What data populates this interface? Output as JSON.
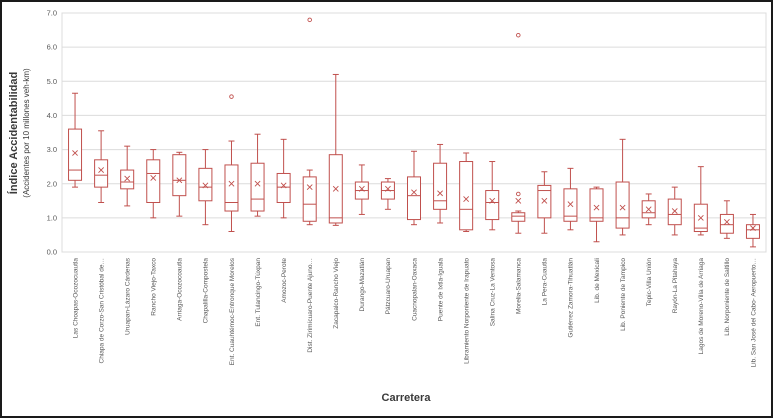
{
  "chart_data": {
    "type": "boxplot",
    "xlabel": "Carretera",
    "ylabel": "Índice Accidentabilidad",
    "ylabel_sub": "(Accidentes por 10 millones veh-km)",
    "ylim": [
      0.0,
      7.0
    ],
    "ytick_step": 1.0,
    "yticks": [
      "0.0",
      "1.0",
      "2.0",
      "3.0",
      "4.0",
      "5.0",
      "6.0",
      "7.0"
    ],
    "grid": true,
    "legend": "none",
    "colors": {
      "box_stroke": "#C0504D",
      "box_fill": "#FFFFFF",
      "gridline": "#DCDCDC",
      "plot_border": "#DCDCDC",
      "tick_text": "#595959",
      "category_text": "#595959",
      "axis_title_text": "#3A3A3A",
      "frame_border": "#1A1A1A"
    },
    "boxes": [
      {
        "label": "Las Choapas-Ocozocuautla",
        "min": 1.9,
        "q1": 2.1,
        "median": 2.4,
        "q3": 3.6,
        "max": 4.65,
        "mean": 2.9,
        "outliers": []
      },
      {
        "label": "Chiapa de Corzo-San Cristóbal de…",
        "min": 1.45,
        "q1": 1.9,
        "median": 2.25,
        "q3": 2.7,
        "max": 3.55,
        "mean": 2.4,
        "outliers": []
      },
      {
        "label": "Uruapan-Lázaro Cárdenas",
        "min": 1.35,
        "q1": 1.85,
        "median": 2.05,
        "q3": 2.4,
        "max": 3.1,
        "mean": 2.15,
        "outliers": []
      },
      {
        "label": "Rancho Viejo-Taxco",
        "min": 1.0,
        "q1": 1.45,
        "median": 2.3,
        "q3": 2.7,
        "max": 3.0,
        "mean": 2.17,
        "outliers": []
      },
      {
        "label": "Arriaga-Ocozocoautla",
        "min": 1.05,
        "q1": 1.65,
        "median": 2.1,
        "q3": 2.85,
        "max": 2.92,
        "mean": 2.1,
        "outliers": []
      },
      {
        "label": "Chapalilla-Compostela",
        "min": 0.8,
        "q1": 1.5,
        "median": 1.9,
        "q3": 2.45,
        "max": 3.0,
        "mean": 1.95,
        "outliers": []
      },
      {
        "label": "Ent. Cuauhtémoc-Entronque Morelos",
        "min": 0.6,
        "q1": 1.2,
        "median": 1.45,
        "q3": 2.55,
        "max": 3.25,
        "mean": 2.0,
        "outliers": [
          4.55
        ]
      },
      {
        "label": "Ent. Tulancingo-Túxpan",
        "min": 1.05,
        "q1": 1.2,
        "median": 1.55,
        "q3": 2.6,
        "max": 3.45,
        "mean": 2.0,
        "outliers": []
      },
      {
        "label": "Amozoc-Perote",
        "min": 1.0,
        "q1": 1.45,
        "median": 1.9,
        "q3": 2.3,
        "max": 3.3,
        "mean": 1.95,
        "outliers": []
      },
      {
        "label": "Dist. Zirimícuaro-Puente Ajuno…",
        "min": 0.8,
        "q1": 0.9,
        "median": 1.4,
        "q3": 2.2,
        "max": 2.4,
        "mean": 1.9,
        "outliers": [
          6.8
        ]
      },
      {
        "label": "Zacapalco-Rancho Viejo",
        "min": 0.78,
        "q1": 0.85,
        "median": 1.0,
        "q3": 2.85,
        "max": 5.2,
        "mean": 1.85,
        "outliers": []
      },
      {
        "label": "Durango-Mazatlán",
        "min": 1.1,
        "q1": 1.55,
        "median": 1.8,
        "q3": 2.05,
        "max": 2.55,
        "mean": 1.85,
        "outliers": []
      },
      {
        "label": "Pátzcuaro-Uruapan",
        "min": 1.25,
        "q1": 1.55,
        "median": 1.8,
        "q3": 2.05,
        "max": 2.15,
        "mean": 1.85,
        "outliers": []
      },
      {
        "label": "Cuacnopalan-Oaxaca",
        "min": 0.8,
        "q1": 0.95,
        "median": 1.65,
        "q3": 2.2,
        "max": 2.95,
        "mean": 1.75,
        "outliers": []
      },
      {
        "label": "Puente de Ixtla-Iguala",
        "min": 0.85,
        "q1": 1.25,
        "median": 1.5,
        "q3": 2.6,
        "max": 3.15,
        "mean": 1.72,
        "outliers": []
      },
      {
        "label": "Libramiento Norponiente de Irapuato",
        "min": 0.6,
        "q1": 0.65,
        "median": 1.25,
        "q3": 2.65,
        "max": 2.9,
        "mean": 1.55,
        "outliers": []
      },
      {
        "label": "Salina Cruz-La Ventosa",
        "min": 0.65,
        "q1": 0.95,
        "median": 1.45,
        "q3": 1.8,
        "max": 2.65,
        "mean": 1.5,
        "outliers": []
      },
      {
        "label": "Morelia-Salamanca",
        "min": 0.55,
        "q1": 0.9,
        "median": 1.05,
        "q3": 1.15,
        "max": 1.2,
        "mean": 1.5,
        "outliers": [
          1.7,
          6.35
        ]
      },
      {
        "label": "La Pera-Cuautla",
        "min": 0.55,
        "q1": 1.0,
        "median": 1.8,
        "q3": 1.95,
        "max": 2.35,
        "mean": 1.5,
        "outliers": []
      },
      {
        "label": "Gutiérrez Zamora-Tihuatlán",
        "min": 0.65,
        "q1": 0.9,
        "median": 1.05,
        "q3": 1.85,
        "max": 2.45,
        "mean": 1.4,
        "outliers": []
      },
      {
        "label": "Lib. de Mexicali",
        "min": 0.3,
        "q1": 0.9,
        "median": 1.0,
        "q3": 1.85,
        "max": 1.9,
        "mean": 1.3,
        "outliers": []
      },
      {
        "label": "Lib. Poniente de Tampico",
        "min": 0.5,
        "q1": 0.7,
        "median": 1.0,
        "q3": 2.05,
        "max": 3.3,
        "mean": 1.3,
        "outliers": []
      },
      {
        "label": "Tepic-Villa Unión",
        "min": 0.8,
        "q1": 1.0,
        "median": 1.15,
        "q3": 1.5,
        "max": 1.7,
        "mean": 1.25,
        "outliers": []
      },
      {
        "label": "Rayón-La Pitahaya",
        "min": 0.5,
        "q1": 0.8,
        "median": 1.1,
        "q3": 1.55,
        "max": 1.9,
        "mean": 1.2,
        "outliers": []
      },
      {
        "label": "Lagos de Moreno-Villa de Arriaga",
        "min": 0.5,
        "q1": 0.6,
        "median": 0.7,
        "q3": 1.4,
        "max": 2.5,
        "mean": 1.0,
        "outliers": []
      },
      {
        "label": "Lib. Norponiente de Saltillo",
        "min": 0.4,
        "q1": 0.55,
        "median": 0.8,
        "q3": 1.1,
        "max": 1.5,
        "mean": 0.88,
        "outliers": []
      },
      {
        "label": "Lib. San José del Cabo- Aeropuerto…",
        "min": 0.15,
        "q1": 0.4,
        "median": 0.65,
        "q3": 0.8,
        "max": 1.1,
        "mean": 0.7,
        "outliers": []
      }
    ]
  }
}
